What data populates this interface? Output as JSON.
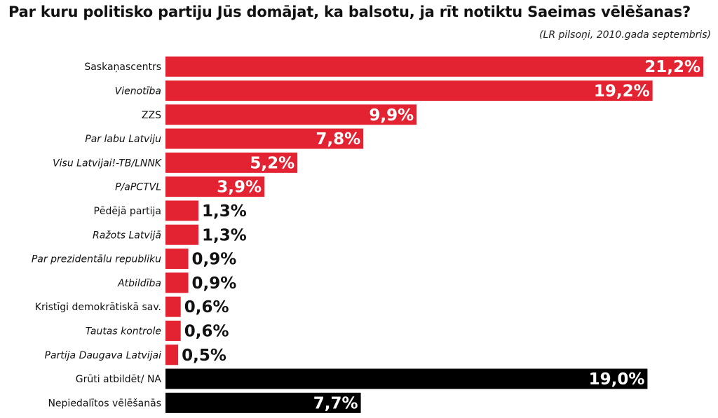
{
  "chart_data": {
    "type": "bar",
    "orientation": "horizontal",
    "title": "Par kuru politisko partiju Jūs domājat, ka balsotu, ja rīt notiktu Saeimas vēlēšanas?",
    "subtitle": "(LR pilsoņi, 2010.gada septembris)",
    "categories": [
      "Saskaņascentrs",
      "Vienotība",
      "ZZS",
      "Par labu Latviju",
      "Visu Latvijai!-TB/LNNK",
      "P/aPCTVL",
      "Pēdējā partija",
      "Ražots Latvijā",
      "Par prezidentālu republiku",
      "Atbildība",
      "Kristīgi demokrātiskā sav.",
      "Tautas kontrole",
      "Partija Daugava Latvijai",
      "Grūti atbildēt/ NA",
      "Nepiedalītos vēlēšanās"
    ],
    "values": [
      21.2,
      19.2,
      9.9,
      7.8,
      5.2,
      3.9,
      1.3,
      1.3,
      0.9,
      0.9,
      0.6,
      0.6,
      0.5,
      19.0,
      7.7
    ],
    "labels": [
      "21,2%",
      "19,2%",
      "9,9%",
      "7,8%",
      "5,2%",
      "3,9%",
      "1,3%",
      "1,3%",
      "0,9%",
      "0,9%",
      "0,6%",
      "0,6%",
      "0,5%",
      "19,0%",
      "7,7%"
    ],
    "italic": [
      false,
      true,
      false,
      true,
      true,
      true,
      false,
      true,
      true,
      true,
      false,
      true,
      true,
      false,
      false
    ],
    "bar_colors": [
      "#e32232",
      "#e32232",
      "#e32232",
      "#e32232",
      "#e32232",
      "#e32232",
      "#e32232",
      "#e32232",
      "#e32232",
      "#e32232",
      "#e32232",
      "#e32232",
      "#e32232",
      "#000000",
      "#000000"
    ],
    "xlim": [
      0,
      21.2
    ],
    "grid": false,
    "legend": "none"
  }
}
